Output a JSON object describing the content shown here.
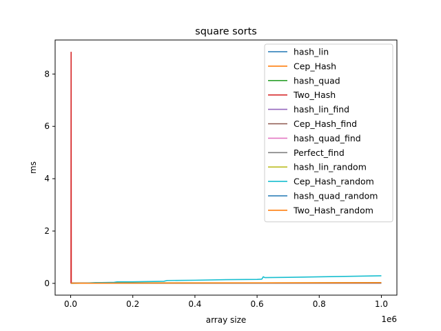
{
  "chart_data": {
    "type": "line",
    "title": "square sorts",
    "xlabel": "array size",
    "ylabel": "ms",
    "x_offset_label": "1e6",
    "xlim": [
      -50000,
      1050000
    ],
    "ylim": [
      -0.45,
      9.3
    ],
    "x_ticks": [
      0,
      200000,
      400000,
      600000,
      800000,
      1000000
    ],
    "x_tick_labels": [
      "0.0",
      "0.2",
      "0.4",
      "0.6",
      "0.8",
      "1.0"
    ],
    "y_ticks": [
      0,
      2,
      4,
      6,
      8
    ],
    "y_tick_labels": [
      "0",
      "2",
      "4",
      "6",
      "8"
    ],
    "grid": false,
    "legend_position": "top-right",
    "series": [
      {
        "name": "hash_lin",
        "color": "#1f77b4",
        "x": [
          1000,
          1000000
        ],
        "y": [
          0.005,
          0.012
        ]
      },
      {
        "name": "Cep_Hash",
        "color": "#ff7f0e",
        "x": [
          1000,
          1000000
        ],
        "y": [
          0.005,
          0.012
        ]
      },
      {
        "name": "hash_quad",
        "color": "#2ca02c",
        "x": [
          1000,
          1000000
        ],
        "y": [
          0.005,
          0.012
        ]
      },
      {
        "name": "Two_Hash",
        "color": "#d62728",
        "x": [
          1000,
          1500,
          2000,
          1000000
        ],
        "y": [
          0.0,
          8.85,
          0.01,
          0.012
        ]
      },
      {
        "name": "hash_lin_find",
        "color": "#9467bd",
        "x": [
          1000,
          1000000
        ],
        "y": [
          0.005,
          0.012
        ]
      },
      {
        "name": "Cep_Hash_find",
        "color": "#8c564b",
        "x": [
          1000,
          1000000
        ],
        "y": [
          0.005,
          0.012
        ]
      },
      {
        "name": "hash_quad_find",
        "color": "#e377c2",
        "x": [
          1000,
          1000000
        ],
        "y": [
          0.005,
          0.012
        ]
      },
      {
        "name": "Perfect_find",
        "color": "#7f7f7f",
        "x": [
          1000,
          1000000
        ],
        "y": [
          0.005,
          0.012
        ]
      },
      {
        "name": "hash_lin_random",
        "color": "#bcbd22",
        "x": [
          1000,
          100000,
          300000,
          600000,
          1000000
        ],
        "y": [
          0.005,
          0.015,
          0.02,
          0.02,
          0.03
        ]
      },
      {
        "name": "Cep_Hash_random",
        "color": "#17becf",
        "x": [
          1000,
          50000,
          80000,
          100000,
          140000,
          150000,
          200000,
          250000,
          300000,
          310000,
          400000,
          500000,
          600000,
          615000,
          620000,
          625000,
          700000,
          800000,
          850000,
          900000,
          1000000
        ],
        "y": [
          0.0,
          0.01,
          0.03,
          0.03,
          0.04,
          0.06,
          0.06,
          0.07,
          0.08,
          0.11,
          0.12,
          0.14,
          0.15,
          0.16,
          0.25,
          0.22,
          0.23,
          0.25,
          0.26,
          0.27,
          0.29
        ]
      },
      {
        "name": "hash_quad_random",
        "color": "#1f77b4",
        "x": [
          1000,
          1000000
        ],
        "y": [
          0.005,
          0.02
        ]
      },
      {
        "name": "Two_Hash_random",
        "color": "#ff7f0e",
        "x": [
          1000,
          500000,
          1000000
        ],
        "y": [
          0.005,
          0.015,
          0.025
        ]
      }
    ]
  }
}
